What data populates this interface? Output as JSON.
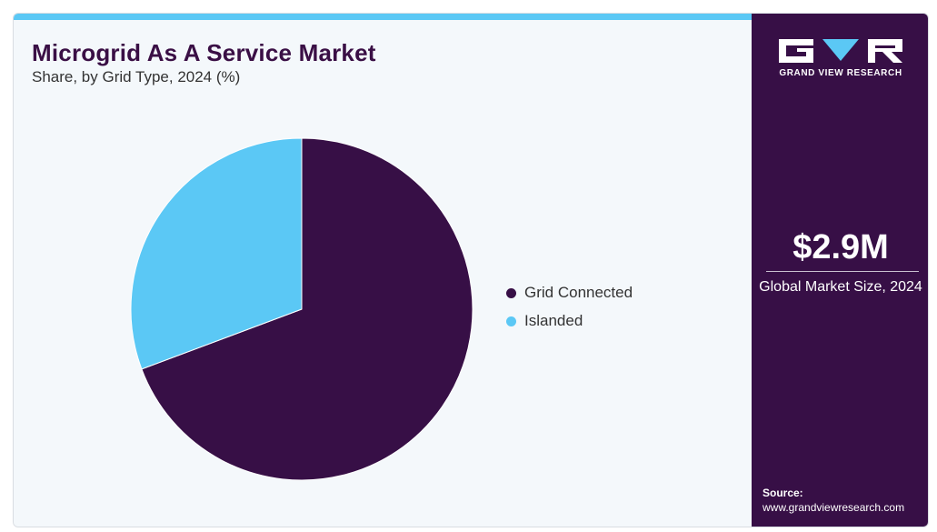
{
  "header": {
    "title": "Microgrid As A Service Market",
    "subtitle": "Share, by Grid Type, 2024 (%)"
  },
  "chart_data": {
    "type": "pie",
    "title": "Microgrid As A Service Market",
    "subtitle": "Share, by Grid Type, 2024 (%)",
    "slices": [
      {
        "label": "Grid Connected",
        "value": 69.3,
        "color": "#370f46"
      },
      {
        "label": "Islanded",
        "value": 30.7,
        "color": "#5bc8f5"
      }
    ],
    "legend_position": "right"
  },
  "sidebar": {
    "logo_text": "GRAND VIEW RESEARCH",
    "market_value": "$2.9M",
    "market_label": "Global Market Size, 2024",
    "source_label": "Source:",
    "source_url": "www.grandviewresearch.com"
  },
  "colors": {
    "brand_dark": "#370f46",
    "accent": "#5bc8f5",
    "panel_bg": "#f4f8fb"
  }
}
